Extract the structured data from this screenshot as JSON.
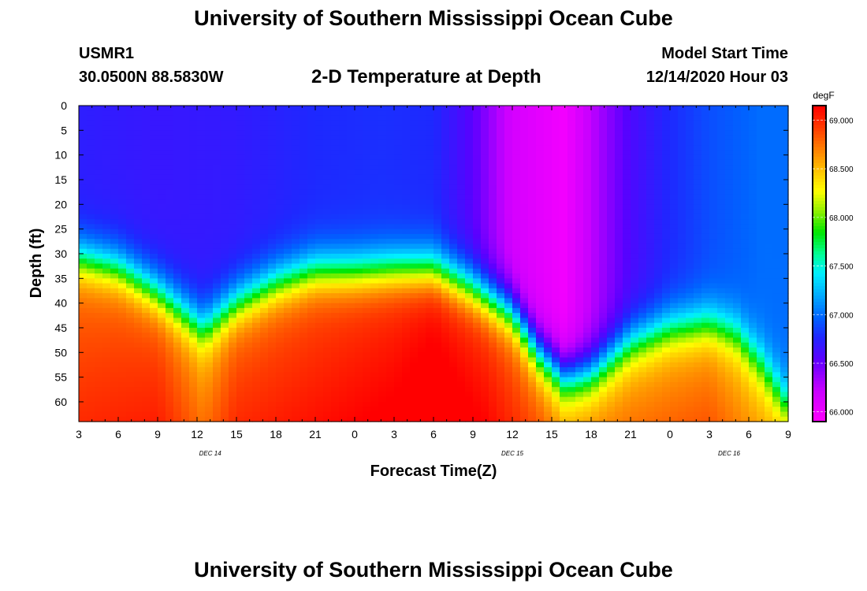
{
  "header": {
    "title": "University of Southern Mississippi Ocean Cube",
    "station_id": "USMR1",
    "coordinates": "30.0500N 88.5830W",
    "plot_title": "2-D Temperature at Depth",
    "model_start_label": "Model Start Time",
    "model_start_time": "12/14/2020 Hour 03"
  },
  "footer": {
    "title": "University of Southern Mississippi Ocean Cube"
  },
  "chart_data": {
    "type": "heatmap",
    "title": "2-D Temperature at Depth",
    "xlabel": "Forecast Time(Z)",
    "ylabel": "Depth (ft)",
    "x_range_hours": [
      0,
      54
    ],
    "y_range_ft": [
      0,
      64
    ],
    "x_tick_labels": [
      "3",
      "6",
      "9",
      "12",
      "15",
      "18",
      "21",
      "0",
      "3",
      "6",
      "9",
      "12",
      "15",
      "18",
      "21",
      "0",
      "3",
      "6",
      "9"
    ],
    "y_tick_labels": [
      "0",
      "5",
      "10",
      "15",
      "20",
      "25",
      "30",
      "35",
      "40",
      "45",
      "50",
      "55",
      "60"
    ],
    "date_labels": [
      {
        "text": "DEC 14",
        "hour": 10
      },
      {
        "text": "DEC 15",
        "hour": 33
      },
      {
        "text": "DEC 16",
        "hour": 49.5
      }
    ],
    "colorbar": {
      "unit": "degF",
      "min": 65.9,
      "max": 69.15,
      "tick_labels": [
        "66.000",
        "66.500",
        "67.000",
        "67.500",
        "68.000",
        "68.500",
        "69.000"
      ]
    },
    "thermocline_depth_ft": [
      {
        "hour": 0,
        "depth": 31
      },
      {
        "hour": 3,
        "depth": 33
      },
      {
        "hour": 6,
        "depth": 38
      },
      {
        "hour": 9.5,
        "depth": 45
      },
      {
        "hour": 12,
        "depth": 40
      },
      {
        "hour": 15,
        "depth": 36
      },
      {
        "hour": 18,
        "depth": 33.5
      },
      {
        "hour": 21,
        "depth": 33.5
      },
      {
        "hour": 24,
        "depth": 33
      },
      {
        "hour": 27,
        "depth": 33
      },
      {
        "hour": 30,
        "depth": 37
      },
      {
        "hour": 33,
        "depth": 42
      },
      {
        "hour": 35,
        "depth": 50
      },
      {
        "hour": 37,
        "depth": 55
      },
      {
        "hour": 39,
        "depth": 54
      },
      {
        "hour": 42,
        "depth": 48
      },
      {
        "hour": 45,
        "depth": 45
      },
      {
        "hour": 48,
        "depth": 44
      },
      {
        "hour": 50,
        "depth": 46
      },
      {
        "hour": 52,
        "depth": 52
      },
      {
        "hour": 54,
        "depth": 60
      }
    ],
    "surface_temperature_degF": [
      {
        "hour": 0,
        "value": 66.72
      },
      {
        "hour": 6,
        "value": 66.68
      },
      {
        "hour": 12,
        "value": 66.7
      },
      {
        "hour": 18,
        "value": 66.78
      },
      {
        "hour": 23,
        "value": 66.8
      },
      {
        "hour": 27,
        "value": 66.78
      },
      {
        "hour": 30,
        "value": 66.55
      },
      {
        "hour": 33,
        "value": 66.15
      },
      {
        "hour": 37,
        "value": 65.97
      },
      {
        "hour": 39,
        "value": 66.25
      },
      {
        "hour": 42,
        "value": 66.6
      },
      {
        "hour": 45,
        "value": 66.78
      },
      {
        "hour": 48,
        "value": 66.9
      },
      {
        "hour": 52,
        "value": 67.0
      },
      {
        "hour": 54,
        "value": 67.0
      }
    ],
    "deep_temperature_degF": [
      {
        "hour": 0,
        "value": 68.75
      },
      {
        "hour": 6,
        "value": 68.8
      },
      {
        "hour": 9.5,
        "value": 68.5
      },
      {
        "hour": 12,
        "value": 68.75
      },
      {
        "hour": 18,
        "value": 68.85
      },
      {
        "hour": 24,
        "value": 68.95
      },
      {
        "hour": 27,
        "value": 69.05
      },
      {
        "hour": 31,
        "value": 68.9
      },
      {
        "hour": 35,
        "value": 68.6
      },
      {
        "hour": 37,
        "value": 68.35
      },
      {
        "hour": 42,
        "value": 68.5
      },
      {
        "hour": 48,
        "value": 68.6
      },
      {
        "hour": 54,
        "value": 68.2
      }
    ]
  }
}
